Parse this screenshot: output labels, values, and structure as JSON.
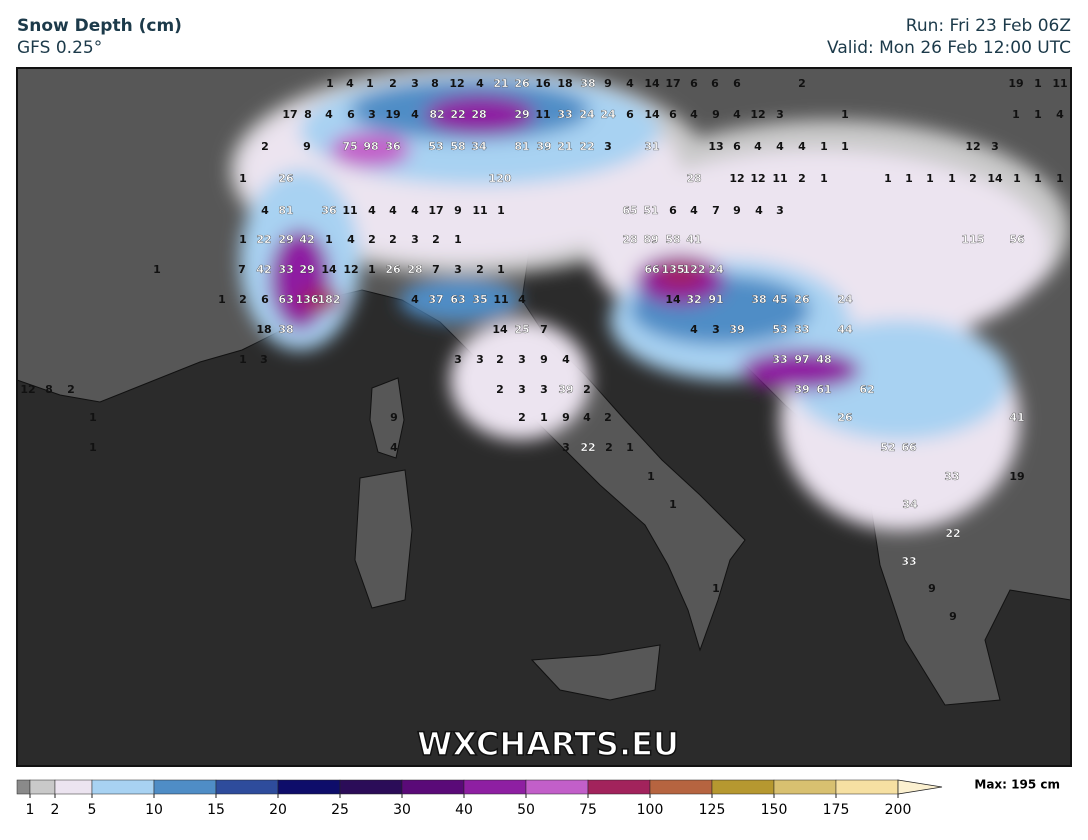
{
  "header": {
    "title": "Snow Depth (cm)",
    "model": "GFS 0.25°",
    "run": "Run: Fri 23 Feb 06Z",
    "valid": "Valid: Mon 26 Feb 12:00 UTC"
  },
  "watermark": "WXCHARTS.EU",
  "max_label": "Max: 195 cm",
  "colorbar": {
    "ticks": [
      1,
      2,
      5,
      10,
      15,
      20,
      25,
      30,
      40,
      50,
      75,
      100,
      125,
      150,
      175,
      200
    ],
    "colors": [
      "#8a8a8a",
      "#c9c9c9",
      "#ece4f0",
      "#a8d2f2",
      "#4f8dc6",
      "#2e4c9c",
      "#0e0d6a",
      "#2b0c58",
      "#5a0a78",
      "#8e1fa2",
      "#c25fc9",
      "#a2235c",
      "#b66440",
      "#b69830",
      "#d8c070",
      "#f6e0a2"
    ]
  },
  "point_values": [
    1,
    4,
    1,
    2,
    3,
    8,
    12,
    4,
    21,
    26,
    16,
    18,
    38,
    9,
    4,
    14,
    17,
    6,
    6,
    6,
    2,
    19,
    1,
    11,
    17,
    8,
    4,
    6,
    3,
    19,
    4,
    82,
    22,
    28,
    29,
    11,
    33,
    24,
    24,
    6,
    14,
    6,
    4,
    9,
    4,
    12,
    3,
    1,
    1,
    1,
    4,
    2,
    9,
    75,
    98,
    36,
    53,
    58,
    34,
    81,
    39,
    21,
    22,
    3,
    31,
    13,
    6,
    4,
    4,
    4,
    1,
    1,
    12,
    3,
    1,
    26,
    120,
    28,
    12,
    12,
    11,
    2,
    1,
    1,
    1,
    1,
    1,
    2,
    14,
    1,
    1,
    1,
    4,
    81,
    36,
    11,
    4,
    4,
    4,
    17,
    9,
    11,
    1,
    65,
    51,
    6,
    4,
    7,
    9,
    4,
    3,
    1,
    22,
    29,
    42,
    1,
    4,
    2,
    2,
    3,
    2,
    1,
    28,
    89,
    58,
    41,
    115,
    56,
    1,
    7,
    42,
    33,
    29,
    14,
    12,
    1,
    26,
    28,
    7,
    3,
    2,
    1,
    66,
    135,
    122,
    24,
    1,
    2,
    6,
    63,
    136,
    182,
    4,
    37,
    63,
    35,
    11,
    4,
    14,
    32,
    91,
    38,
    45,
    26,
    24,
    18,
    38,
    14,
    25,
    7,
    4,
    3,
    39,
    53,
    33,
    44,
    1,
    3,
    3,
    3,
    2,
    3,
    9,
    4,
    33,
    97,
    48,
    12,
    8,
    2,
    2,
    3,
    3,
    39,
    2,
    39,
    61,
    62,
    1,
    9,
    2,
    1,
    9,
    4,
    2,
    26,
    41,
    1,
    4,
    3,
    22,
    2,
    1,
    52,
    66,
    1,
    33,
    19,
    1,
    34,
    22,
    33,
    1,
    9,
    9
  ]
}
